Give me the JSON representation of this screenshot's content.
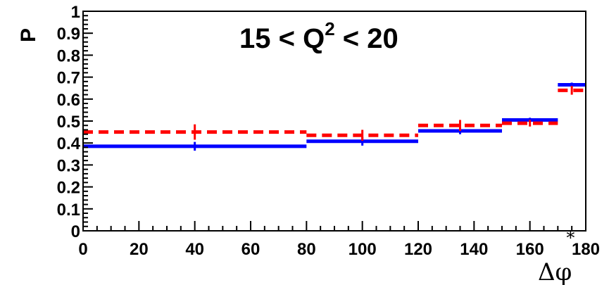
{
  "chart_data": {
    "type": "step",
    "title": {
      "base": "15 < Q",
      "sup": "2",
      "tail": " < 20"
    },
    "xlabel": {
      "base": "Δφ",
      "sup": "*"
    },
    "ylabel": "P",
    "xlim": [
      0,
      180
    ],
    "ylim": [
      0,
      1
    ],
    "x_ticks": [
      "0",
      "20",
      "40",
      "60",
      "80",
      "100",
      "120",
      "140",
      "160",
      "180"
    ],
    "y_ticks": [
      "0",
      "0.1",
      "0.2",
      "0.3",
      "0.4",
      "0.5",
      "0.6",
      "0.7",
      "0.8",
      "0.9",
      "1"
    ],
    "bins": [
      [
        0,
        80
      ],
      [
        80,
        120
      ],
      [
        120,
        150
      ],
      [
        150,
        170
      ],
      [
        170,
        180
      ]
    ],
    "grid": false,
    "series": [
      {
        "color": "#0000ff",
        "style": "solid",
        "values": [
          0.385,
          0.408,
          0.455,
          0.505,
          0.665
        ],
        "errors": [
          0.02,
          0.02,
          0.015,
          0.01,
          0.01
        ]
      },
      {
        "color": "#ff0000",
        "style": "dashed",
        "values": [
          0.45,
          0.435,
          0.48,
          0.49,
          0.64
        ],
        "errors": [
          0.035,
          0.025,
          0.025,
          0.015,
          0.02
        ]
      }
    ]
  }
}
